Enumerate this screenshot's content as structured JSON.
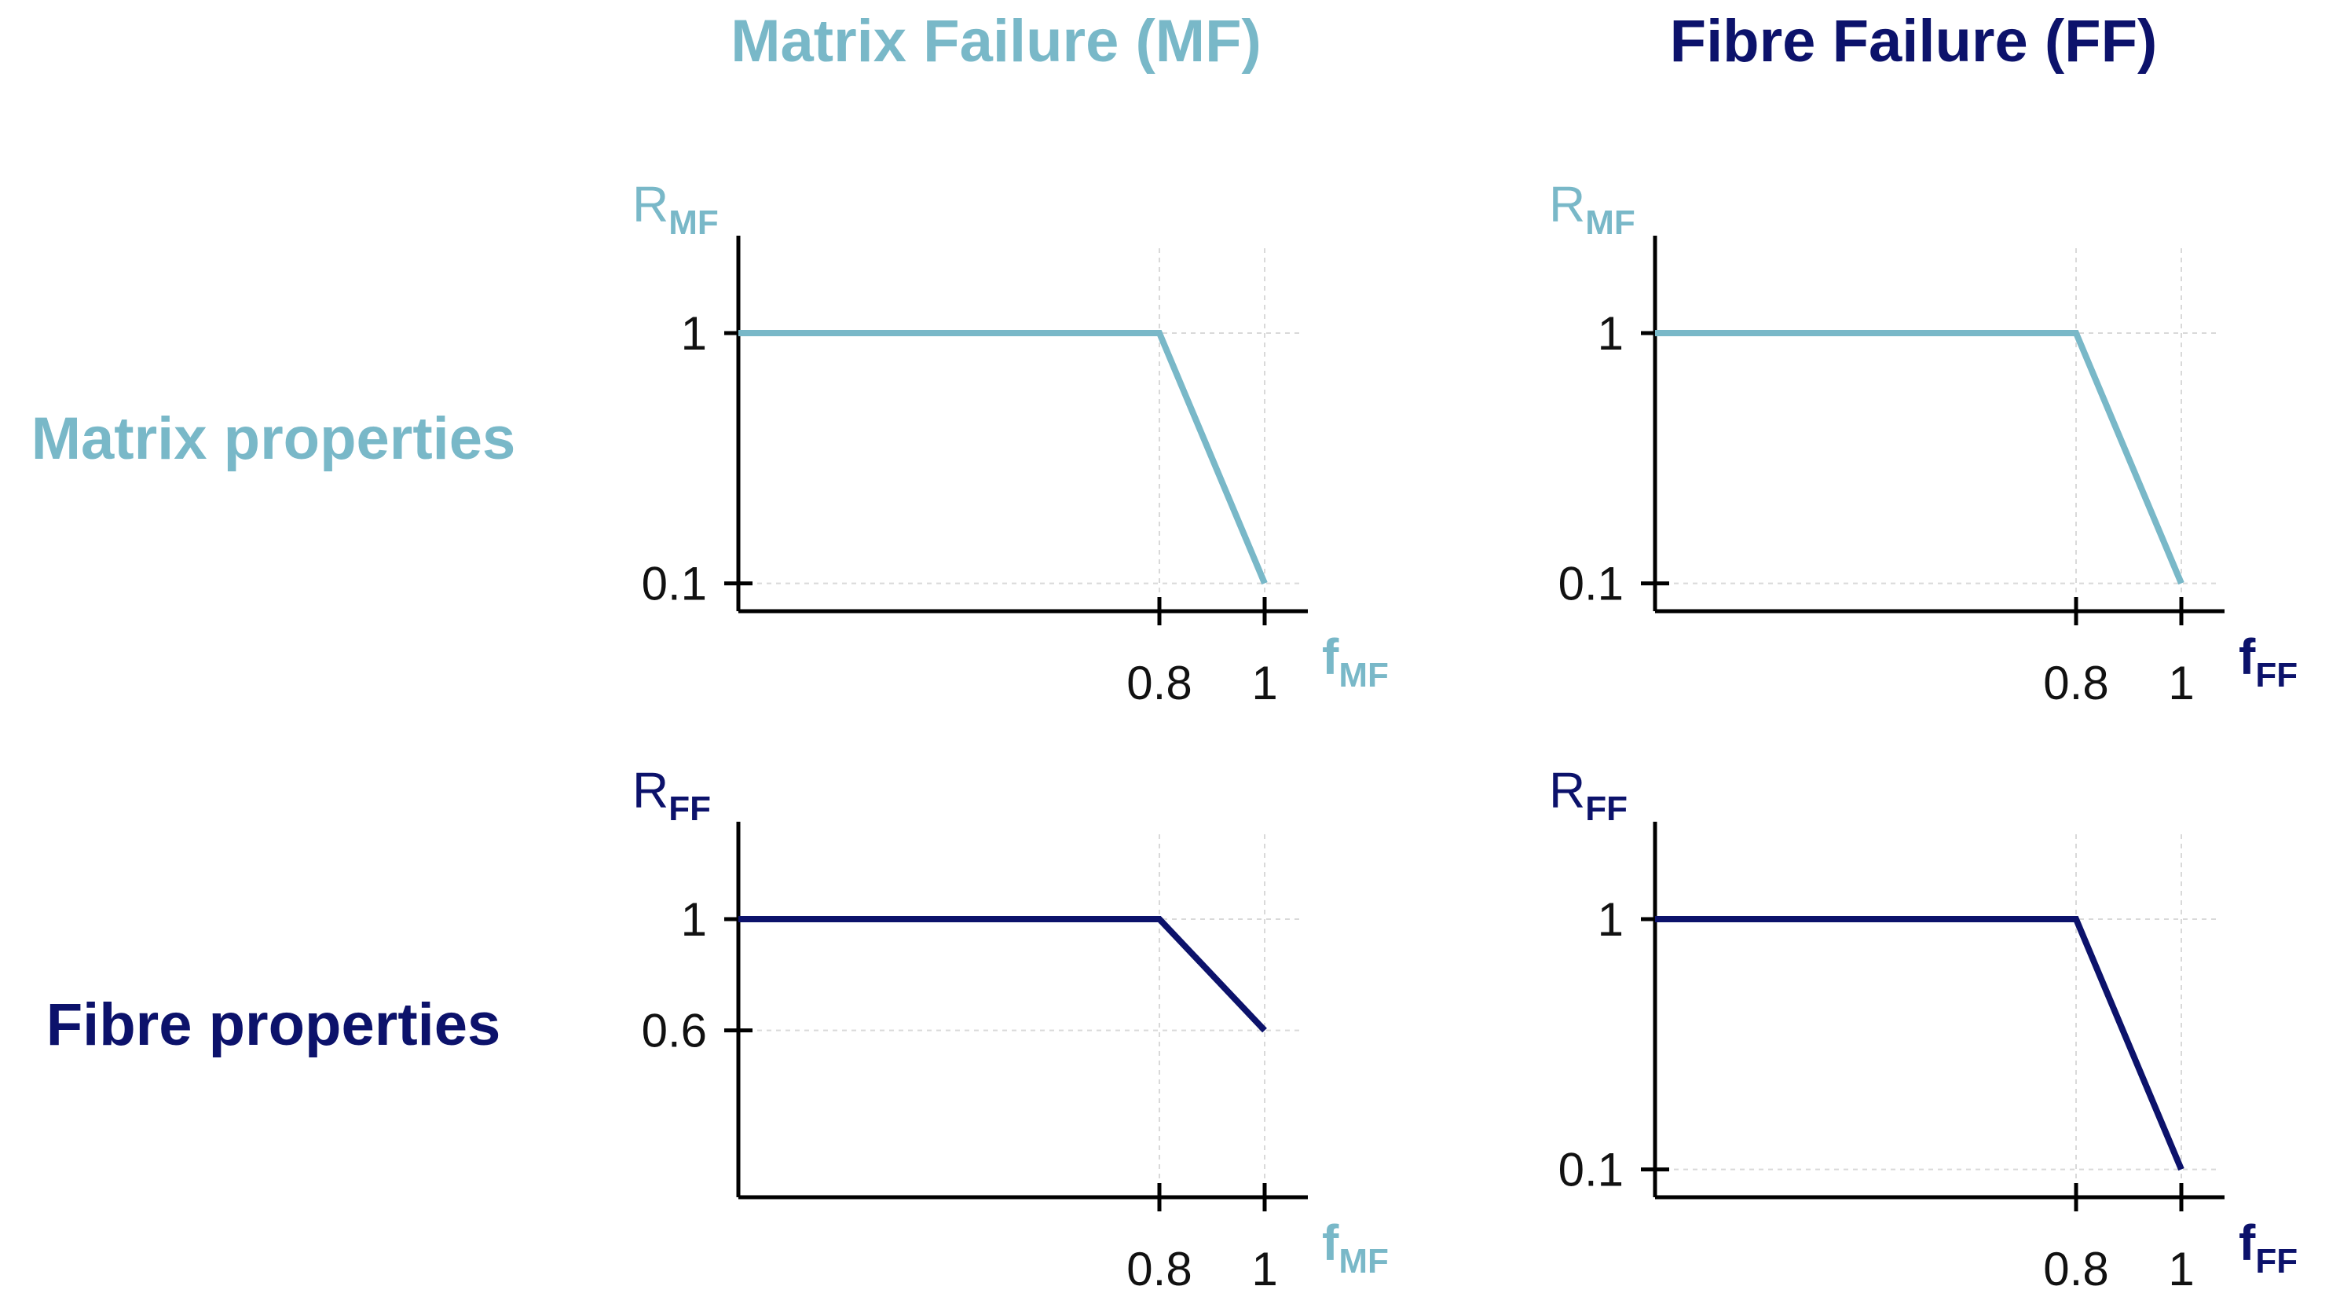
{
  "column_headers": [
    {
      "text": "Matrix Failure (MF)",
      "color": "#79b8c8"
    },
    {
      "text": "Fibre Failure (FF)",
      "color": "#0c126b"
    }
  ],
  "row_headers": [
    {
      "text": "Matrix properties",
      "color": "#79b8c8"
    },
    {
      "text": "Fibre properties",
      "color": "#0c126b"
    }
  ],
  "colors": {
    "light": "#79b8c8",
    "dark": "#0c126b",
    "axis": "#000000",
    "grid": "#d9d9d9"
  },
  "chart_data": [
    {
      "type": "line",
      "row": 0,
      "col": 0,
      "color": "#79b8c8",
      "y_label": {
        "main": "R",
        "sub": "MF",
        "color": "#79b8c8"
      },
      "x_label": {
        "main": "f",
        "sub": "MF",
        "color": "#79b8c8"
      },
      "x": [
        0,
        0.8,
        1
      ],
      "y": [
        1,
        1,
        0.1
      ],
      "xlim": [
        0,
        1.1
      ],
      "ylim": [
        0,
        1.2
      ],
      "x_ticks": [
        0.8,
        1
      ],
      "x_tick_labels": [
        "0.8",
        "1"
      ],
      "y_ticks": [
        0.1,
        1
      ],
      "y_tick_labels": [
        "0.1",
        "1"
      ],
      "grid": "dashed at non-trivial ticks"
    },
    {
      "type": "line",
      "row": 0,
      "col": 1,
      "color": "#79b8c8",
      "y_label": {
        "main": "R",
        "sub": "MF",
        "color": "#79b8c8"
      },
      "x_label": {
        "main": "f",
        "sub": "FF",
        "color": "#0c126b"
      },
      "x": [
        0,
        0.8,
        1
      ],
      "y": [
        1,
        1,
        0.1
      ],
      "xlim": [
        0,
        1.1
      ],
      "ylim": [
        0,
        1.2
      ],
      "x_ticks": [
        0.8,
        1
      ],
      "x_tick_labels": [
        "0.8",
        "1"
      ],
      "y_ticks": [
        0.1,
        1
      ],
      "y_tick_labels": [
        "0.1",
        "1"
      ],
      "grid": "dashed at non-trivial ticks"
    },
    {
      "type": "line",
      "row": 1,
      "col": 0,
      "color": "#0c126b",
      "y_label": {
        "main": "R",
        "sub": "FF",
        "color": "#0c126b"
      },
      "x_label": {
        "main": "f",
        "sub": "MF",
        "color": "#79b8c8"
      },
      "x": [
        0,
        0.8,
        1
      ],
      "y": [
        1,
        1,
        0.6
      ],
      "xlim": [
        0,
        1.1
      ],
      "ylim": [
        0,
        1.2
      ],
      "x_ticks": [
        0.8,
        1
      ],
      "x_tick_labels": [
        "0.8",
        "1"
      ],
      "y_ticks": [
        0.6,
        1
      ],
      "y_tick_labels": [
        "0.6",
        "1"
      ],
      "grid": "dashed at non-trivial ticks"
    },
    {
      "type": "line",
      "row": 1,
      "col": 1,
      "color": "#0c126b",
      "y_label": {
        "main": "R",
        "sub": "FF",
        "color": "#0c126b"
      },
      "x_label": {
        "main": "f",
        "sub": "FF",
        "color": "#0c126b"
      },
      "x": [
        0,
        0.8,
        1
      ],
      "y": [
        1,
        1,
        0.1
      ],
      "xlim": [
        0,
        1.1
      ],
      "ylim": [
        0,
        1.2
      ],
      "x_ticks": [
        0.8,
        1
      ],
      "x_tick_labels": [
        "0.8",
        "1"
      ],
      "y_ticks": [
        0.1,
        1
      ],
      "y_tick_labels": [
        "0.1",
        "1"
      ],
      "grid": "dashed at non-trivial ticks"
    }
  ]
}
